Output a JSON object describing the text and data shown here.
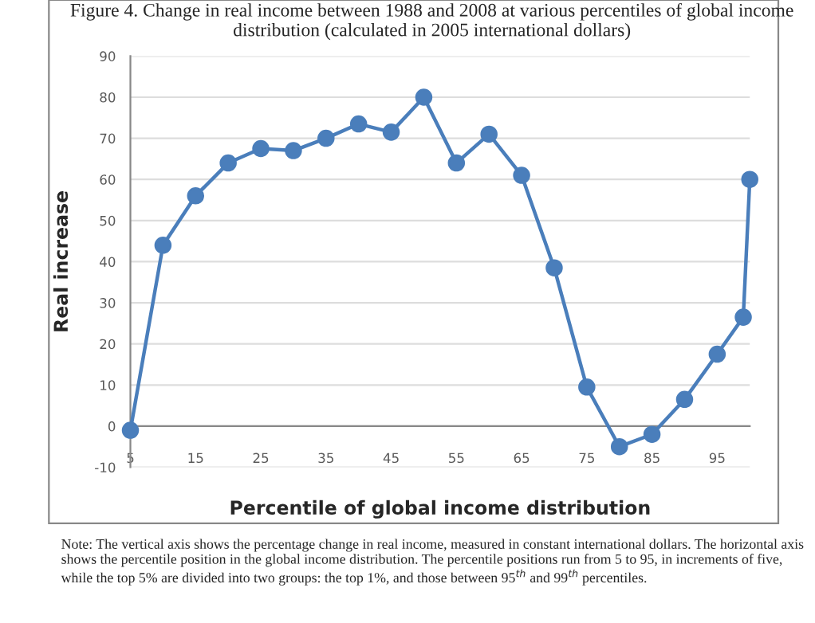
{
  "chart_data": {
    "type": "line",
    "title": "Figure 4. Change in real income between 1988 and 2008 at various percentiles of global income distribution (calculated in 2005 international dollars)",
    "xlabel": "Percentile of global income distribution",
    "ylabel": "Real increase",
    "x": [
      5,
      10,
      15,
      20,
      25,
      30,
      35,
      40,
      45,
      50,
      55,
      60,
      65,
      70,
      75,
      80,
      85,
      90,
      95,
      99,
      100
    ],
    "series": [
      {
        "color": "#4a7ebb",
        "values": [
          -1,
          44,
          56,
          64,
          67.5,
          67,
          70,
          73.5,
          71.5,
          80,
          64,
          71,
          61,
          38.5,
          9.5,
          -5,
          -2,
          6.5,
          17.5,
          26.5,
          60
        ]
      }
    ],
    "marker": "circle",
    "line_style": "solid",
    "xlim": [
      5,
      100
    ],
    "xticks": [
      5,
      15,
      25,
      35,
      45,
      55,
      65,
      75,
      85,
      95
    ],
    "ylim": [
      -10,
      90
    ],
    "yticks": [
      -10,
      0,
      10,
      20,
      30,
      40,
      50,
      60,
      70,
      80,
      90
    ],
    "grid": "y",
    "annotations": [
      "Note: The vertical axis shows the percentage change in real income, measured in constant international dollars. The horizontal axis shows the percentile position in the global income distribution. The percentile positions run from 5 to 95, in increments of five, while the top 5% are divided into two groups: the top 1%, and those between 95$^{th}$ and 99$^{th}$ percentiles."
    ]
  }
}
